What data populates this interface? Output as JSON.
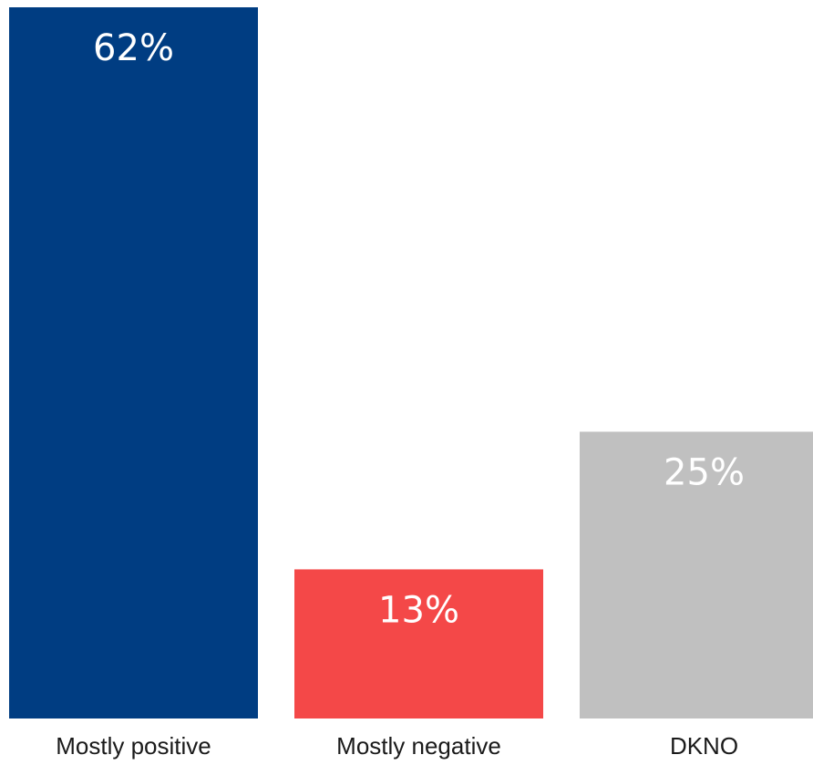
{
  "chart_data": {
    "type": "bar",
    "categories": [
      "Mostly positive",
      "Mostly negative",
      "DKNO"
    ],
    "values": [
      62,
      13,
      25
    ],
    "value_labels": [
      "62%",
      "13%",
      "25%"
    ],
    "colors": [
      "#003d82",
      "#f44848",
      "#c0c0c0"
    ],
    "unit": "%",
    "ylim": [
      0,
      62
    ],
    "grid": false,
    "legend": "none",
    "data_label_position": "inside-top"
  }
}
